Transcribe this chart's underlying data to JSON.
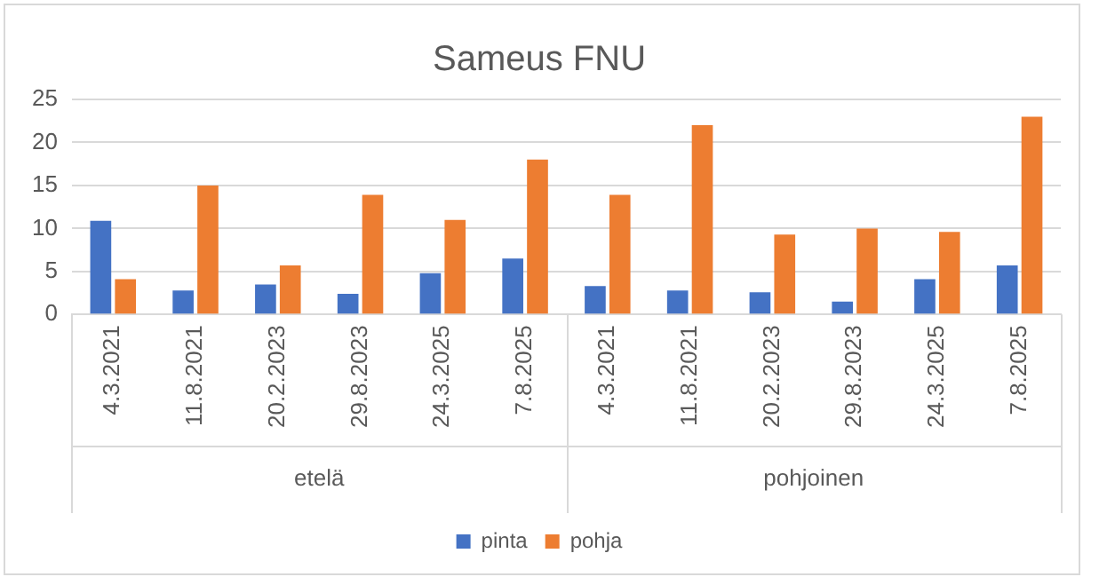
{
  "chart_data": {
    "type": "bar",
    "title": "Sameus FNU",
    "categories": [
      "4.3.2021",
      "11.8.2021",
      "20.2.2023",
      "29.8.2023",
      "24.3.2025",
      "7.8.2025",
      "4.3.2021",
      "11.8.2021",
      "20.2.2023",
      "29.8.2023",
      "24.3.2025",
      "7.8.2025"
    ],
    "series": [
      {
        "name": "pinta",
        "color": "#4472c4",
        "values": [
          10.9,
          2.8,
          3.5,
          2.4,
          4.8,
          6.5,
          3.3,
          2.8,
          2.6,
          1.5,
          4.1,
          5.7
        ]
      },
      {
        "name": "pohja",
        "color": "#ed7d31",
        "values": [
          4.1,
          15,
          5.7,
          13.9,
          11,
          18,
          13.9,
          22,
          9.3,
          10,
          9.6,
          23
        ]
      }
    ],
    "annotations": [
      "etelä",
      "pohjoinen"
    ],
    "ylim": [
      0,
      25
    ],
    "yticks": [
      0,
      5,
      10,
      15,
      20,
      25
    ],
    "grid": "y",
    "legend": "bottom"
  }
}
